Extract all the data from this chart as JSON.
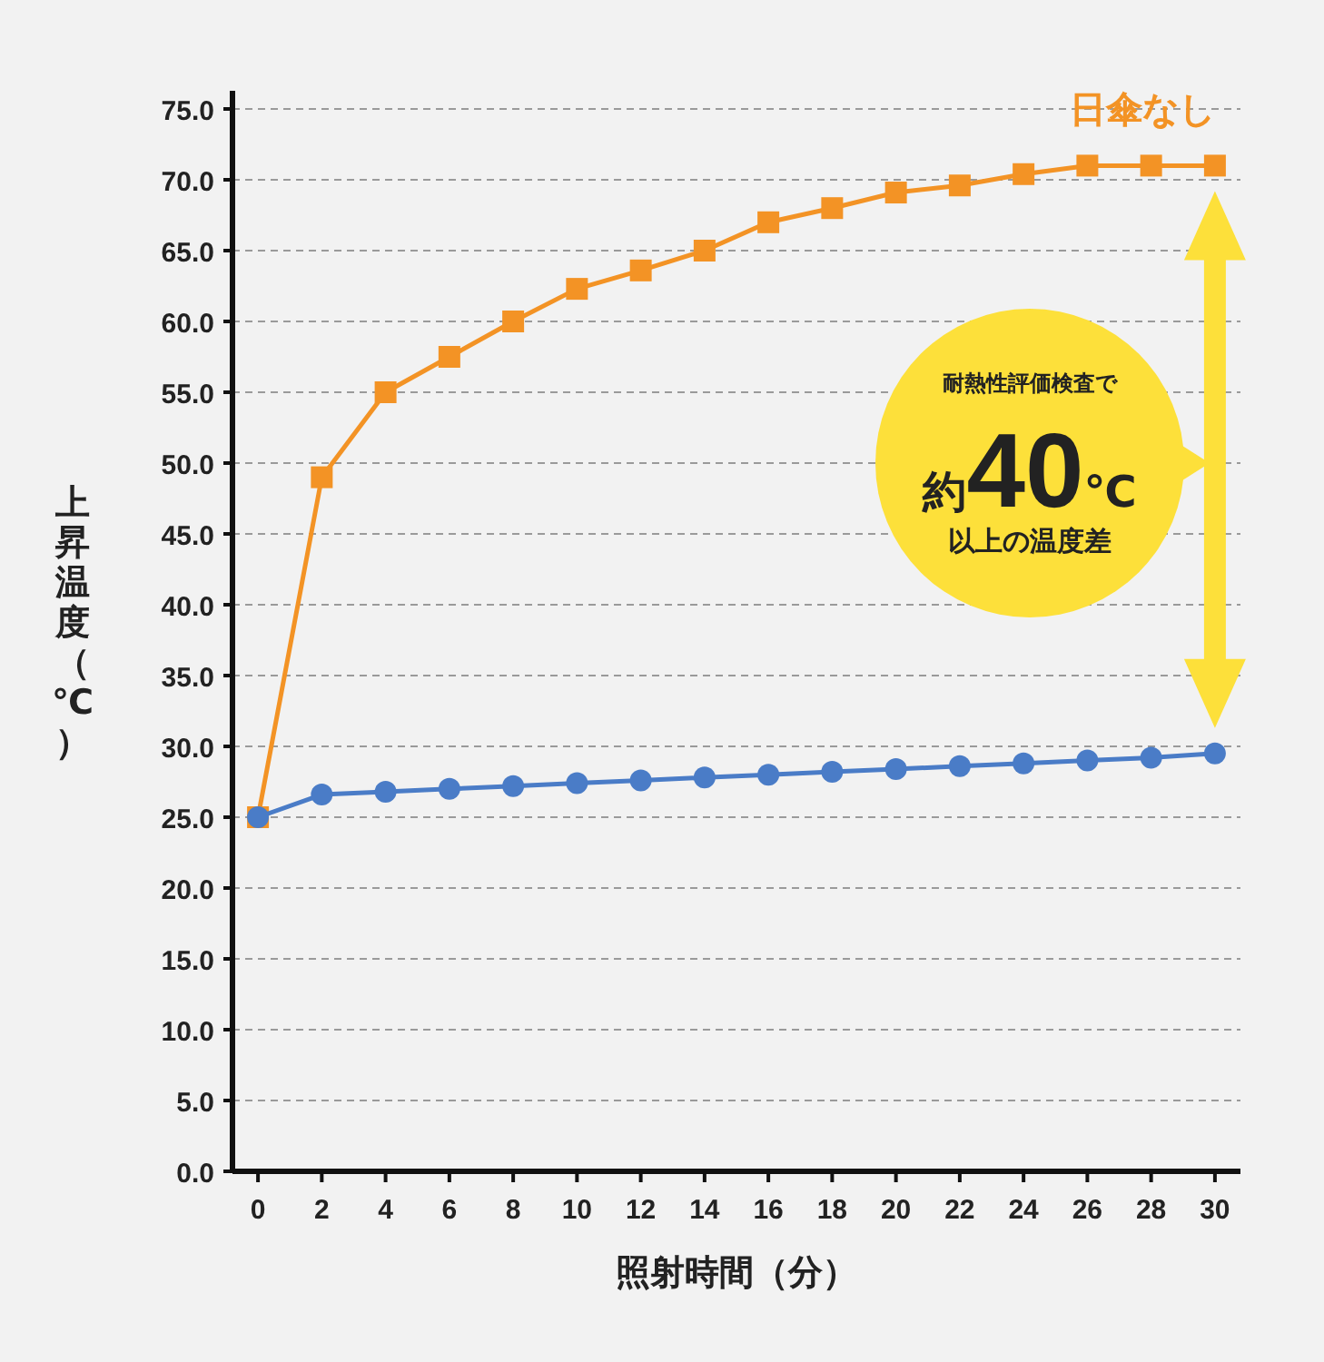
{
  "chart_data": {
    "type": "line",
    "xlabel": "照射時間（分）",
    "ylabel": "上昇温度（℃）",
    "x": [
      0,
      2,
      4,
      6,
      8,
      10,
      12,
      14,
      16,
      18,
      20,
      22,
      24,
      26,
      28,
      30
    ],
    "series": [
      {
        "name": "日傘なし",
        "color": "#f39325",
        "marker": "square",
        "values": [
          25,
          49,
          55,
          57.5,
          60,
          62.3,
          63.6,
          65,
          67,
          68,
          69.1,
          69.6,
          70.4,
          71,
          71,
          71
        ]
      },
      {
        "color": "#4a7cc7",
        "marker": "circle",
        "values": [
          25,
          26.6,
          26.8,
          27,
          27.2,
          27.4,
          27.6,
          27.8,
          28,
          28.2,
          28.4,
          28.6,
          28.8,
          29,
          29.2,
          29.5
        ]
      }
    ],
    "xlim": [
      -0.8,
      30.8
    ],
    "xticks": [
      0,
      2,
      4,
      6,
      8,
      10,
      12,
      14,
      16,
      18,
      20,
      22,
      24,
      26,
      28,
      30
    ],
    "ylim": [
      0,
      75
    ],
    "yticks": [
      {
        "value": 0,
        "label": "0.0"
      },
      {
        "value": 5,
        "label": "5.0"
      },
      {
        "value": 10,
        "label": "10.0"
      },
      {
        "value": 15,
        "label": "15.0"
      },
      {
        "value": 20,
        "label": "20.0"
      },
      {
        "value": 25,
        "label": "25.0"
      },
      {
        "value": 30,
        "label": "30.0"
      },
      {
        "value": 35,
        "label": "35.0"
      },
      {
        "value": 40,
        "label": "40.0"
      },
      {
        "value": 45,
        "label": "45.0"
      },
      {
        "value": 50,
        "label": "50.0"
      },
      {
        "value": 55,
        "label": "55.0"
      },
      {
        "value": 60,
        "label": "60.0"
      },
      {
        "value": 65,
        "label": "65.0"
      },
      {
        "value": 70,
        "label": "70.0"
      },
      {
        "value": 75,
        "label": "75.0"
      }
    ],
    "grid": "y",
    "line_style": "solid",
    "annotations": [
      "耐熱性評価検査で",
      "約40℃",
      "以上の温度差"
    ]
  }
}
